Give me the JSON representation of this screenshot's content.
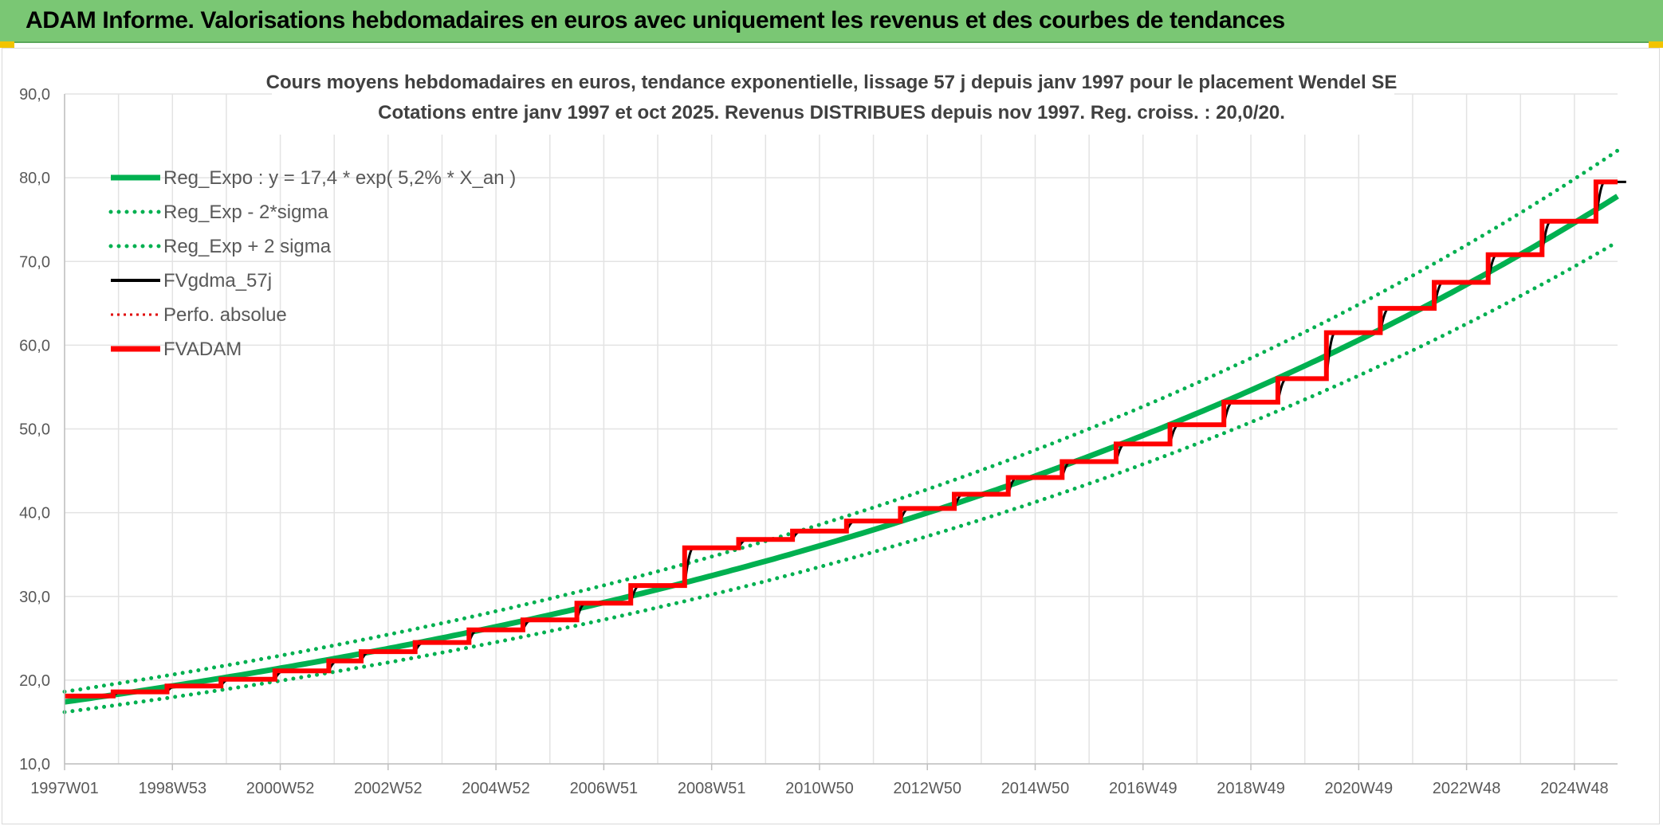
{
  "header": {
    "title": "ADAM Informe. Valorisations hebdomadaires en euros avec uniquement les revenus et des courbes de tendances"
  },
  "colors": {
    "banner": "#7ac774",
    "trend": "#00b050",
    "band": "#00b050",
    "fvgdma": "#000000",
    "perfo": "#e00000",
    "fvadam": "#ff0000",
    "grid": "#e3e3e3"
  },
  "chart_data": {
    "type": "line",
    "title": "Cours moyens hebdomadaires en euros, tendance exponentielle, lissage 57 j depuis janv 1997 pour le placement Wendel SE",
    "subtitle": "Cotations entre janv 1997 et oct 2025. Revenus DISTRIBUES depuis nov 1997. Reg. croiss. : 20,0/20.",
    "xlabel": "",
    "ylabel": "",
    "x_range": [
      1997.0,
      2025.8
    ],
    "ylim": [
      10,
      90
    ],
    "y_ticks": [
      "10,0",
      "20,0",
      "30,0",
      "40,0",
      "50,0",
      "60,0",
      "70,0",
      "80,0",
      "90,0"
    ],
    "x_ticks": [
      {
        "label": "1997W01",
        "x": 1997.0
      },
      {
        "label": "1998W53",
        "x": 1999.0
      },
      {
        "label": "2000W52",
        "x": 2001.0
      },
      {
        "label": "2002W52",
        "x": 2003.0
      },
      {
        "label": "2004W52",
        "x": 2005.0
      },
      {
        "label": "2006W51",
        "x": 2007.0
      },
      {
        "label": "2008W51",
        "x": 2009.0
      },
      {
        "label": "2010W50",
        "x": 2011.0
      },
      {
        "label": "2012W50",
        "x": 2013.0
      },
      {
        "label": "2014W50",
        "x": 2015.0
      },
      {
        "label": "2016W49",
        "x": 2017.0
      },
      {
        "label": "2018W49",
        "x": 2019.0
      },
      {
        "label": "2020W49",
        "x": 2021.0
      },
      {
        "label": "2022W48",
        "x": 2023.0
      },
      {
        "label": "2024W48",
        "x": 2025.0
      }
    ],
    "grid": true,
    "legend_position": "top-left",
    "trend": {
      "a": 17.4,
      "rate": 0.052,
      "sigma_factor": 0.07
    },
    "series": [
      {
        "name": "Reg_Expo : y = 17,4 * exp( 5,2% *  X_an )",
        "style": "solid-thick",
        "color": "#00b050"
      },
      {
        "name": "Reg_Exp - 2*sigma",
        "style": "dotted",
        "color": "#00b050"
      },
      {
        "name": "Reg_Exp + 2 sigma",
        "style": "dotted",
        "color": "#00b050"
      },
      {
        "name": "FVgdma_57j",
        "style": "solid",
        "color": "#000000"
      },
      {
        "name": "Perfo. absolue",
        "style": "dotted-thin",
        "color": "#e00000"
      },
      {
        "name": "FVADAM",
        "style": "solid-thick",
        "color": "#ff0000"
      }
    ],
    "fvadam_steps": {
      "x": [
        1997.0,
        1997.9,
        1998.9,
        1999.9,
        2000.9,
        2001.9,
        2002.5,
        2003.5,
        2004.5,
        2005.5,
        2006.5,
        2007.5,
        2008.5,
        2009.5,
        2010.5,
        2011.5,
        2012.5,
        2013.5,
        2014.5,
        2015.5,
        2016.5,
        2017.5,
        2018.5,
        2019.5,
        2020.4,
        2021.4,
        2022.4,
        2023.4,
        2024.4,
        2025.4,
        2025.8
      ],
      "y": [
        18.1,
        18.6,
        19.3,
        20.1,
        21.1,
        22.3,
        23.4,
        24.5,
        26.0,
        27.2,
        29.2,
        31.3,
        35.8,
        36.8,
        37.8,
        39.0,
        40.5,
        42.2,
        44.2,
        46.1,
        48.2,
        50.5,
        53.2,
        56.0,
        61.5,
        64.4,
        67.5,
        70.8,
        74.8,
        79.5,
        79.5
      ]
    }
  }
}
